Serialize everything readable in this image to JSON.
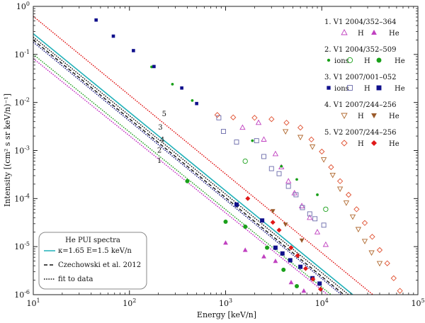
{
  "chart_data": {
    "type": "scatter",
    "xlabel": "Energy [keV/n]",
    "ylabel": "Intensity [(cm² s sr keV/n)⁻¹]",
    "xscale": "log",
    "yscale": "log",
    "xlim": [
      10,
      100000
    ],
    "ylim": [
      1e-06,
      1
    ],
    "x_ticks": [
      {
        "value": 10,
        "base": "10",
        "exp": "1"
      },
      {
        "value": 100,
        "base": "10",
        "exp": "2"
      },
      {
        "value": 1000,
        "base": "10",
        "exp": "3"
      },
      {
        "value": 10000,
        "base": "10",
        "exp": "4"
      },
      {
        "value": 100000,
        "base": "10",
        "exp": "5"
      }
    ],
    "y_ticks": [
      {
        "value": 1e-06,
        "base": "10",
        "exp": "-6"
      },
      {
        "value": 1e-05,
        "base": "10",
        "exp": "-5"
      },
      {
        "value": 0.0001,
        "base": "10",
        "exp": "-4"
      },
      {
        "value": 0.001,
        "base": "10",
        "exp": "-3"
      },
      {
        "value": 0.01,
        "base": "10",
        "exp": "-2"
      },
      {
        "value": 0.1,
        "base": "10",
        "exp": "-1"
      },
      {
        "value": 1,
        "base": "10",
        "exp": "0"
      }
    ],
    "lines": [
      {
        "name": "κ=1.65 E=1.5 keV/n",
        "style": "solid",
        "color": "#1fb0b8",
        "points": [
          [
            10,
            0.27
          ],
          [
            21000,
            1e-06
          ]
        ]
      },
      {
        "name": "Czechowski et al. 2012",
        "style": "dashed",
        "color": "#111111",
        "points": [
          [
            10,
            0.2
          ],
          [
            17000,
            1e-06
          ]
        ]
      },
      {
        "name": "fit 1",
        "style": "dotted",
        "color": "#c020c0",
        "points": [
          [
            10,
            0.082
          ],
          [
            11500,
            1e-06
          ]
        ]
      },
      {
        "name": "fit 2",
        "style": "dotted",
        "color": "#20a020",
        "points": [
          [
            10,
            0.1
          ],
          [
            12500,
            1e-06
          ]
        ]
      },
      {
        "name": "fit 3",
        "style": "dotted",
        "color": "#111111",
        "points": [
          [
            10,
            0.23
          ],
          [
            19000,
            1e-06
          ]
        ]
      },
      {
        "name": "fit 4",
        "style": "dotted",
        "color": "#1a1a80",
        "points": [
          [
            10,
            0.18
          ],
          [
            16000,
            1e-06
          ]
        ]
      },
      {
        "name": "fit 5",
        "style": "dotted",
        "color": "#e01010",
        "points": [
          [
            10,
            0.62
          ],
          [
            34000,
            1e-06
          ]
        ]
      }
    ],
    "line_labels": [
      {
        "text": "1",
        "x": 205,
        "y": 0.00055
      },
      {
        "text": "2",
        "x": 205,
        "y": 0.0009
      },
      {
        "text": "3",
        "x": 210,
        "y": 0.0027
      },
      {
        "text": "4",
        "x": 220,
        "y": 0.0015
      },
      {
        "text": "5",
        "x": 230,
        "y": 0.0052
      }
    ],
    "series": [
      {
        "name": "V1 2004/352–364 H",
        "marker": "triangle-open",
        "color": "#c040c0",
        "points": [
          [
            1500,
            0.003
          ],
          [
            2200,
            0.0038
          ],
          [
            2500,
            0.0017
          ],
          [
            3300,
            0.00085
          ],
          [
            3800,
            0.00045
          ],
          [
            4500,
            0.00023
          ],
          [
            5200,
            0.00013
          ],
          [
            6200,
            7e-05
          ],
          [
            7500,
            4e-05
          ],
          [
            9000,
            2e-05
          ],
          [
            11000,
            1.1e-05
          ]
        ]
      },
      {
        "name": "V1 2004/352–364 He",
        "marker": "triangle-filled",
        "color": "#c040c0",
        "points": [
          [
            1000,
            1.2e-05
          ],
          [
            1600,
            8.5e-06
          ],
          [
            2500,
            6.2e-06
          ],
          [
            3300,
            5e-06
          ],
          [
            4800,
            1.8e-06
          ],
          [
            6500,
            1.2e-06
          ]
        ]
      },
      {
        "name": "V1 2004/352–509 ions",
        "marker": "dot-small",
        "color": "#1aa01a",
        "points": [
          [
            170,
            0.055
          ],
          [
            280,
            0.024
          ],
          [
            450,
            0.011
          ],
          [
            1900,
            0.0016
          ],
          [
            3800,
            0.00047
          ],
          [
            5500,
            0.00025
          ],
          [
            9000,
            0.00012
          ]
        ]
      },
      {
        "name": "V1 2004/352–509 H",
        "marker": "circle-open",
        "color": "#1aa01a",
        "points": [
          [
            1600,
            0.0006
          ],
          [
            11000,
            6e-05
          ]
        ]
      },
      {
        "name": "V1 2004/352–509 He",
        "marker": "circle-filled",
        "color": "#1aa01a",
        "points": [
          [
            400,
            0.00023
          ],
          [
            1000,
            3.3e-05
          ],
          [
            1600,
            2.6e-05
          ],
          [
            2700,
            9.5e-06
          ],
          [
            4000,
            3.3e-06
          ],
          [
            5500,
            1.5e-06
          ]
        ]
      },
      {
        "name": "V1 2007/001–052 ions",
        "marker": "square-small",
        "color": "#10108c",
        "points": [
          [
            45,
            0.52
          ],
          [
            68,
            0.24
          ],
          [
            110,
            0.12
          ],
          [
            180,
            0.056
          ],
          [
            350,
            0.02
          ],
          [
            500,
            0.0095
          ]
        ]
      },
      {
        "name": "V1 2007/001–052 H",
        "marker": "square-open",
        "color": "#6a6aaa",
        "points": [
          [
            850,
            0.0048
          ],
          [
            950,
            0.0025
          ],
          [
            1300,
            0.0015
          ],
          [
            2100,
            0.0016
          ],
          [
            2500,
            0.00075
          ],
          [
            3000,
            0.00042
          ],
          [
            3600,
            0.00033
          ],
          [
            4500,
            0.00018
          ],
          [
            5400,
            0.00012
          ],
          [
            6300,
            6.5e-05
          ],
          [
            7500,
            4.8e-05
          ],
          [
            8500,
            3.8e-05
          ],
          [
            10500,
            2.8e-05
          ]
        ]
      },
      {
        "name": "V1 2007/001–052 He",
        "marker": "square-filled",
        "color": "#10108c",
        "points": [
          [
            1300,
            7.5e-05
          ],
          [
            2400,
            3.5e-05
          ],
          [
            3300,
            9.5e-06
          ],
          [
            3900,
            7.2e-06
          ],
          [
            4700,
            5.2e-06
          ],
          [
            6000,
            3.8e-06
          ],
          [
            8000,
            2.2e-06
          ],
          [
            9500,
            1.7e-06
          ]
        ]
      },
      {
        "name": "V1 2007/244–256 H",
        "marker": "triangle-down-open",
        "color": "#b06a30",
        "points": [
          [
            4200,
            0.0025
          ],
          [
            6000,
            0.0019
          ],
          [
            8000,
            0.0012
          ],
          [
            10500,
            0.00065
          ],
          [
            13000,
            0.00031
          ],
          [
            15500,
            0.00016
          ],
          [
            18000,
            8.2e-05
          ],
          [
            21000,
            4.2e-05
          ],
          [
            24000,
            2.3e-05
          ],
          [
            28000,
            1.3e-05
          ],
          [
            33000,
            7.5e-06
          ],
          [
            40000,
            4.5e-06
          ]
        ]
      },
      {
        "name": "V1 2007/244–256 He",
        "marker": "triangle-down-filled",
        "color": "#9a5a2a",
        "points": [
          [
            3100,
            5.5e-05
          ],
          [
            4200,
            2.9e-05
          ],
          [
            6200,
            1.35e-05
          ]
        ]
      },
      {
        "name": "V2 2007/244–256 H",
        "marker": "diamond-open",
        "color": "#e05030",
        "points": [
          [
            820,
            0.0055
          ],
          [
            1200,
            0.0049
          ],
          [
            2000,
            0.0048
          ],
          [
            3000,
            0.0045
          ],
          [
            4300,
            0.0038
          ],
          [
            6000,
            0.003
          ],
          [
            7800,
            0.0017
          ],
          [
            10000,
            0.00095
          ],
          [
            12500,
            0.00045
          ],
          [
            15500,
            0.00023
          ],
          [
            19000,
            0.00012
          ],
          [
            23000,
            6e-05
          ],
          [
            28000,
            3.1e-05
          ],
          [
            33500,
            1.6e-05
          ],
          [
            40000,
            8.5e-06
          ],
          [
            48000,
            4.5e-06
          ],
          [
            56000,
            2.2e-06
          ],
          [
            65000,
            1.2e-06
          ]
        ]
      },
      {
        "name": "V2 2007/244–256 He",
        "marker": "diamond-filled",
        "color": "#e01818",
        "points": [
          [
            1700,
            0.0001
          ],
          [
            3100,
            3.2e-05
          ],
          [
            3600,
            2.2e-05
          ],
          [
            4800,
            9.5e-06
          ],
          [
            5600,
            6.5e-06
          ],
          [
            6800,
            3.5e-06
          ],
          [
            8100,
            2.1e-06
          ],
          [
            9700,
            1.3e-06
          ]
        ]
      }
    ],
    "legend_right": [
      {
        "title": "1. V1 2004/352–364",
        "entries": [
          {
            "label": "H",
            "marker": "triangle-open",
            "color": "#c040c0"
          },
          {
            "label": "He",
            "marker": "triangle-filled",
            "color": "#c040c0"
          }
        ]
      },
      {
        "title": "2. V1 2004/352–509",
        "entries": [
          {
            "label": "ions",
            "marker": "dot-small",
            "color": "#1aa01a"
          },
          {
            "label": "H",
            "marker": "circle-open",
            "color": "#1aa01a"
          },
          {
            "label": "He",
            "marker": "circle-filled",
            "color": "#1aa01a"
          }
        ]
      },
      {
        "title": "3. V1 2007/001–052",
        "entries": [
          {
            "label": "ions",
            "marker": "square-small",
            "color": "#10108c"
          },
          {
            "label": "H",
            "marker": "square-open",
            "color": "#6a6aaa"
          },
          {
            "label": "He",
            "marker": "square-filled",
            "color": "#10108c"
          }
        ]
      },
      {
        "title": "4. V1 2007/244–256",
        "entries": [
          {
            "label": "H",
            "marker": "triangle-down-open",
            "color": "#b06a30"
          },
          {
            "label": "He",
            "marker": "triangle-down-filled",
            "color": "#9a5a2a"
          }
        ]
      },
      {
        "title": "5. V2 2007/244–256",
        "entries": [
          {
            "label": "H",
            "marker": "diamond-open",
            "color": "#e05030"
          },
          {
            "label": "He",
            "marker": "diamond-filled",
            "color": "#e01818"
          }
        ]
      }
    ],
    "legend_box": {
      "title": "He PUI spectra",
      "entries": [
        {
          "label": "κ=1.65 E=1.5 keV/n",
          "style": "solid",
          "color": "#1fb0b8"
        },
        {
          "label": "Czechowski et al. 2012",
          "style": "dashed",
          "color": "#111111"
        },
        {
          "label": "fit to data",
          "style": "dotted",
          "color": "#111111"
        }
      ]
    }
  }
}
